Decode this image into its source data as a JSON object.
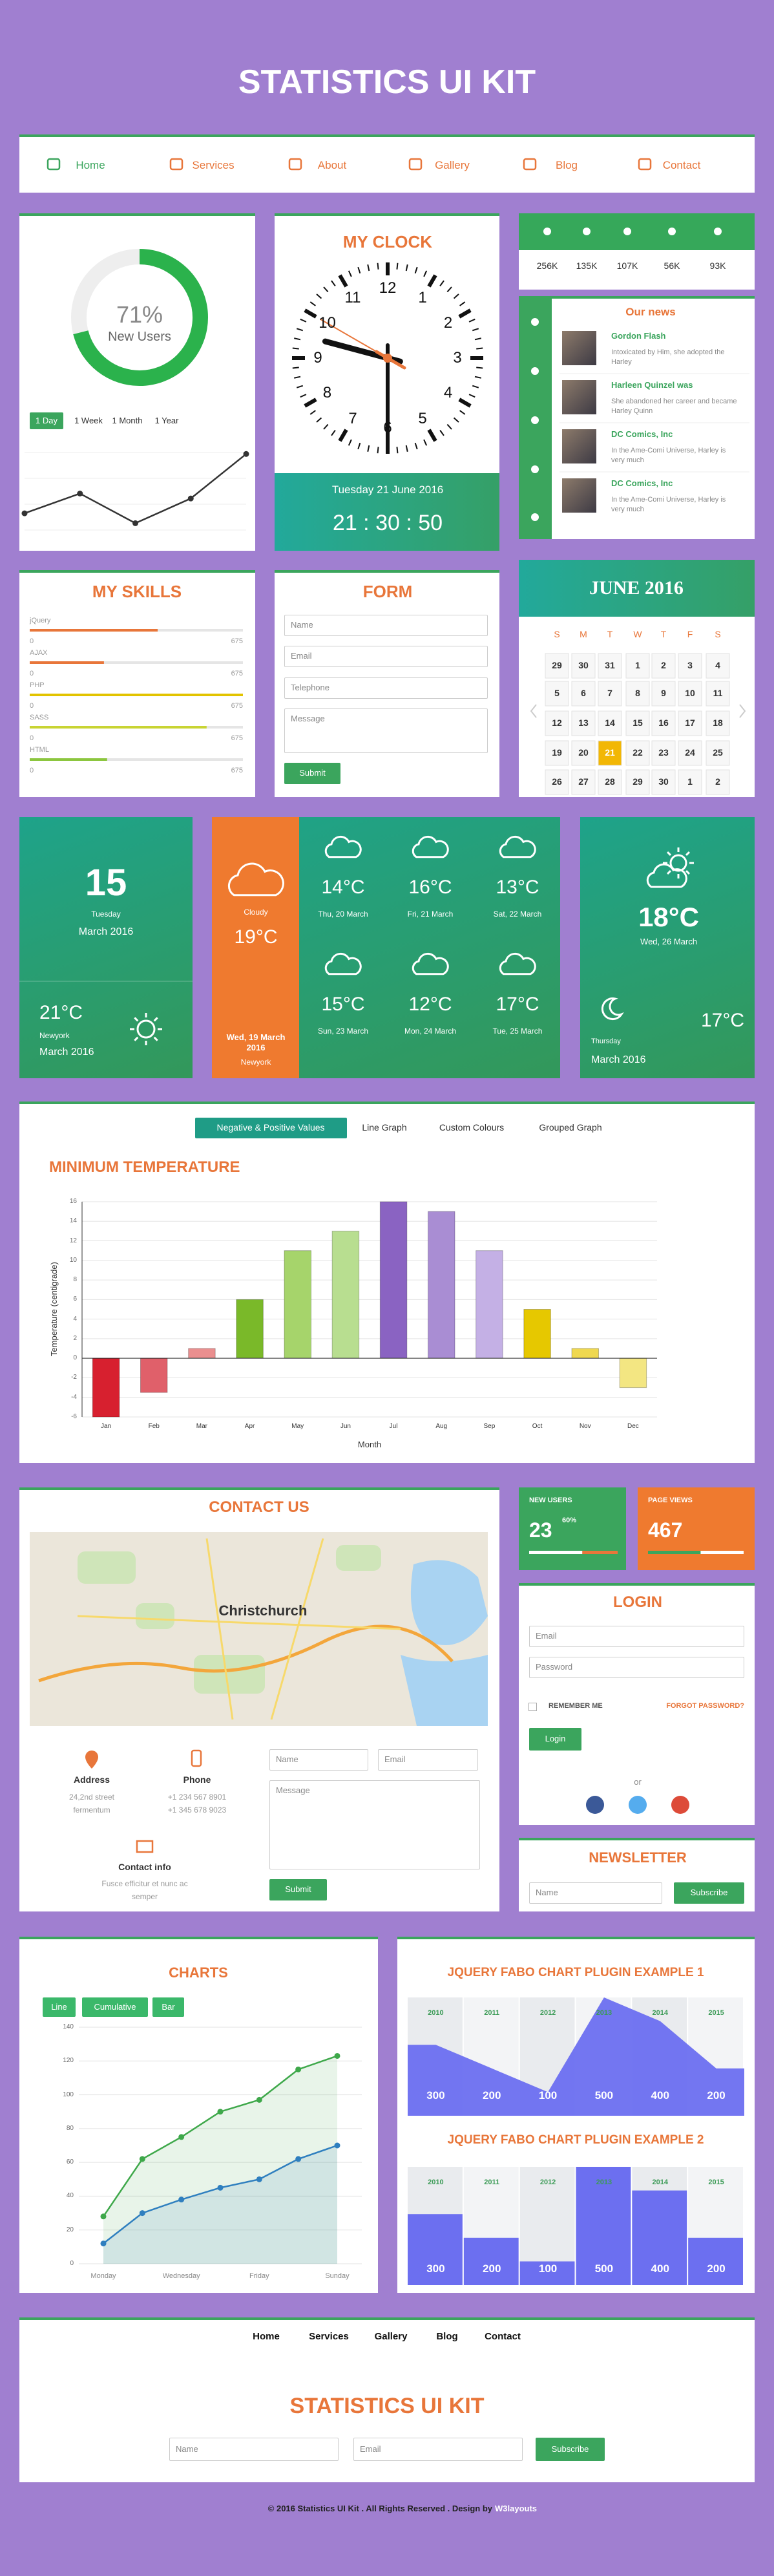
{
  "header": {
    "title": "STATISTICS UI KIT"
  },
  "nav": [
    "Home",
    "Services",
    "About",
    "Gallery",
    "Blog",
    "Contact"
  ],
  "users_card": {
    "tabs": [
      "1 Day",
      "1 Week",
      "1 Month",
      "1 Year"
    ]
  },
  "clock": {
    "title": "MY CLOCK",
    "numbers": [
      12,
      1,
      2,
      3,
      4,
      5,
      6,
      7,
      8,
      9,
      10,
      11
    ],
    "date": "Tuesday 21 June 2016",
    "time": "21 : 30 : 50"
  },
  "social": {
    "counts": [
      "256K",
      "135K",
      "107K",
      "56K",
      "93K"
    ]
  },
  "news": {
    "title": "Our news",
    "items": [
      {
        "title": "Gordon Flash",
        "text": "Intoxicated by Him, she adopted the Harley"
      },
      {
        "title": "Harleen Quinzel was",
        "text": "She abandoned her career and became Harley Quinn"
      },
      {
        "title": "DC Comics, Inc",
        "text": "In the Ame-Comi Universe, Harley is very much"
      },
      {
        "title": "DC Comics, Inc",
        "text": "In the Ame-Comi Universe, Harley is very much"
      }
    ]
  },
  "skills": {
    "title": "MY SKILLS",
    "range": [
      0,
      675
    ],
    "items": [
      {
        "name": "jQuery",
        "value": 405,
        "color": "#e8763a"
      },
      {
        "name": "AJAX",
        "value": 235,
        "color": "#e8763a"
      },
      {
        "name": "PHP",
        "value": 675,
        "color": "#e2c300"
      },
      {
        "name": "SASS",
        "value": 560,
        "color": "#c8d433"
      },
      {
        "name": "HTML",
        "value": 245,
        "color": "#8cc63f"
      }
    ]
  },
  "form": {
    "title": "FORM",
    "fields": [
      "Name",
      "Email",
      "Telephone",
      "Message"
    ],
    "submit": "Submit"
  },
  "calendar": {
    "title": "JUNE 2016",
    "days": [
      "S",
      "M",
      "T",
      "W",
      "T",
      "F",
      "S"
    ],
    "weeks": [
      [
        29,
        30,
        31,
        1,
        2,
        3,
        4
      ],
      [
        5,
        6,
        7,
        8,
        9,
        10,
        11
      ],
      [
        12,
        13,
        14,
        15,
        16,
        17,
        18
      ],
      [
        19,
        20,
        21,
        22,
        23,
        24,
        25
      ],
      [
        26,
        27,
        28,
        29,
        30,
        1,
        2
      ]
    ],
    "selected": 21
  },
  "weather": {
    "today": {
      "date": "15",
      "weekday": "Tuesday",
      "month": "March 2016",
      "temp": "21°C",
      "city": "Newyork",
      "month_2": "March 2016"
    },
    "now": {
      "condition": "Cloudy",
      "temp": "19°C",
      "date": "Wed, 19 March 2016",
      "city": "Newyork"
    },
    "forecast": [
      {
        "temp": "14°C",
        "date": "Thu, 20 March"
      },
      {
        "temp": "16°C",
        "date": "Fri, 21 March"
      },
      {
        "temp": "13°C",
        "date": "Sat, 22 March"
      },
      {
        "temp": "15°C",
        "date": "Sun, 23 March"
      },
      {
        "temp": "12°C",
        "date": "Mon, 24 March"
      },
      {
        "temp": "17°C",
        "date": "Tue, 25 March"
      }
    ],
    "next": {
      "temp": "18°C",
      "date": "Wed, 26 March",
      "weekday": "Thursday",
      "month": "March 2016",
      "temp_2": "17°C"
    }
  },
  "temperature_tabs": [
    "Negative & Positive Values",
    "Line Graph",
    "Custom Colours",
    "Grouped Graph"
  ],
  "contact": {
    "title": "CONTACT US",
    "map_label": "Christchurch",
    "address_title": "Address",
    "address": [
      "24,2nd street",
      "fermentum"
    ],
    "phone_title": "Phone",
    "phones": [
      "+1 234 567 8901",
      "+1 345 678 9023"
    ],
    "info_title": "Contact info",
    "info": [
      "Fusce efficitur et nunc ac",
      "semper"
    ],
    "fields": [
      "Name",
      "Email",
      "Message"
    ],
    "submit": "Submit"
  },
  "stats": {
    "new_users": {
      "title": "NEW USERS",
      "value": 23,
      "percent_label": "60%",
      "progress": 60
    },
    "page_views": {
      "title": "PAGE VIEWS",
      "value": 467,
      "progress": 55
    }
  },
  "login": {
    "title": "LOGIN",
    "fields": [
      "Email",
      "Password"
    ],
    "remember": "REMEMBER ME",
    "forgot": "FORGOT PASSWORD?",
    "button": "Login",
    "or": "or"
  },
  "newsletter": {
    "title": "NEWSLETTER",
    "field": "Name",
    "button": "Subscribe"
  },
  "charts_card": {
    "buttons": [
      "Line",
      "Cumulative",
      "Bar"
    ]
  },
  "footer": {
    "links": [
      "Home",
      "Services",
      "Gallery",
      "Blog",
      "Contact"
    ],
    "title": "STATISTICS UI KIT",
    "fields": [
      "Name",
      "Email"
    ],
    "button": "Subscribe",
    "copyright": "© 2016 Statistics UI Kit . All Rights Reserved . Design by",
    "credit": "W3layouts"
  },
  "chart_data": [
    {
      "type": "bar",
      "title": "MINIMUM TEMPERATURE",
      "categories": [
        "Jan",
        "Feb",
        "Mar",
        "Apr",
        "May",
        "Jun",
        "Jul",
        "Aug",
        "Sep",
        "Oct",
        "Nov",
        "Dec"
      ],
      "values": [
        -6,
        -3.5,
        1,
        6,
        11,
        13,
        16,
        15,
        11,
        5,
        1,
        -3
      ],
      "colors": [
        "#d7202f",
        "#e0606a",
        "#ea8f8f",
        "#7ab929",
        "#a6d46b",
        "#b8de90",
        "#8a63c2",
        "#a98dd3",
        "#c4b0e5",
        "#e6c800",
        "#efd850",
        "#f3e682"
      ],
      "ylim": [
        -6,
        16
      ],
      "yticks": [
        16,
        14,
        12,
        10,
        8,
        6,
        4,
        2,
        0,
        -2,
        -4,
        -6
      ],
      "y_label": "Temperature (centigrade)",
      "x_label": "Month",
      "grid": true
    },
    {
      "type": "line",
      "title": "CHARTS",
      "categories": [
        "Monday",
        null,
        "Wednesday",
        null,
        "Friday",
        null,
        "Sunday"
      ],
      "series": [
        {
          "color": "#3ea84a",
          "values": [
            28,
            62,
            75,
            90,
            97,
            115,
            123
          ]
        },
        {
          "color": "#2f7fbf",
          "values": [
            12,
            30,
            38,
            45,
            50,
            62,
            70
          ]
        }
      ],
      "ylim": [
        0,
        140
      ],
      "yticks": [
        0,
        20,
        40,
        60,
        80,
        100,
        120,
        140
      ],
      "grid": true
    },
    {
      "type": "area",
      "title": "JQUERY FABO CHART PLUGIN EXAMPLE 1",
      "categories": [
        "2010",
        "2011",
        "2012",
        "2013",
        "2014",
        "2015"
      ],
      "values": [
        300,
        200,
        100,
        500,
        400,
        200
      ],
      "color": "#6c6ff0",
      "ylim": [
        0,
        500
      ]
    },
    {
      "type": "bar",
      "title": "JQUERY FABO CHART PLUGIN EXAMPLE 2",
      "categories": [
        "2010",
        "2011",
        "2012",
        "2013",
        "2014",
        "2015"
      ],
      "values": [
        300,
        200,
        100,
        500,
        400,
        200
      ],
      "color": "#6c6ff0",
      "ylim": [
        0,
        500
      ]
    },
    {
      "type": "donut",
      "values": [
        71
      ],
      "value_labels": [
        "71%"
      ],
      "label": "New Users",
      "color": "#2bb24c"
    },
    {
      "type": "line",
      "values": [
        3,
        5,
        2,
        4.5,
        9
      ],
      "color": "#333333",
      "ylim": [
        0,
        10
      ]
    }
  ]
}
